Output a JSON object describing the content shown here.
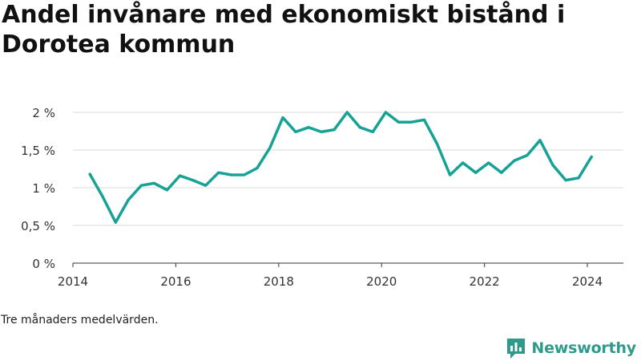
{
  "title": "Andel invånare med ekonomiskt bistånd i Dorotea kommun",
  "footnote": "Tre månaders medelvärden.",
  "brand": {
    "name": "Newsworthy",
    "color": "#2f9a8c"
  },
  "icons": {
    "brand": "newsworthy-chart-icon"
  },
  "colors": {
    "line": "#16a295",
    "grid": "#d9d9d9",
    "axis": "#333333"
  },
  "chart_data": {
    "type": "line",
    "title": "Andel invånare med ekonomiskt bistånd i Dorotea kommun",
    "xlabel": "",
    "ylabel": "",
    "xlim": [
      2014,
      2024.7
    ],
    "ylim": [
      0,
      2
    ],
    "y_ticks": [
      0,
      0.5,
      1,
      1.5,
      2
    ],
    "y_tick_labels": [
      "0 %",
      "0,5 %",
      "1 %",
      "1,5 %",
      "2 %"
    ],
    "x_ticks": [
      2014,
      2016,
      2018,
      2020,
      2022,
      2024
    ],
    "x_tick_labels": [
      "2014",
      "2016",
      "2018",
      "2020",
      "2022",
      "2024"
    ],
    "grid": true,
    "series": [
      {
        "x": [
          2014.33,
          2014.58,
          2014.83,
          2015.08,
          2015.33,
          2015.58,
          2015.83,
          2016.08,
          2016.33,
          2016.58,
          2016.83,
          2017.08,
          2017.33,
          2017.58,
          2017.83,
          2018.08,
          2018.33,
          2018.58,
          2018.83,
          2019.08,
          2019.33,
          2019.58,
          2019.83,
          2020.08,
          2020.33,
          2020.58,
          2020.83,
          2021.08,
          2021.33,
          2021.58,
          2021.83,
          2022.08,
          2022.33,
          2022.58,
          2022.83,
          2023.08,
          2023.33,
          2023.58,
          2023.83,
          2024.08
        ],
        "y": [
          1.18,
          0.88,
          0.54,
          0.84,
          1.03,
          1.06,
          0.97,
          1.16,
          1.1,
          1.03,
          1.2,
          1.17,
          1.17,
          1.26,
          1.53,
          1.93,
          1.74,
          1.8,
          1.74,
          1.77,
          2.0,
          1.8,
          1.74,
          2.0,
          1.87,
          1.87,
          1.9,
          1.58,
          1.17,
          1.33,
          1.2,
          1.33,
          1.2,
          1.36,
          1.43,
          1.63,
          1.3,
          1.1,
          1.13,
          1.41
        ]
      }
    ]
  }
}
